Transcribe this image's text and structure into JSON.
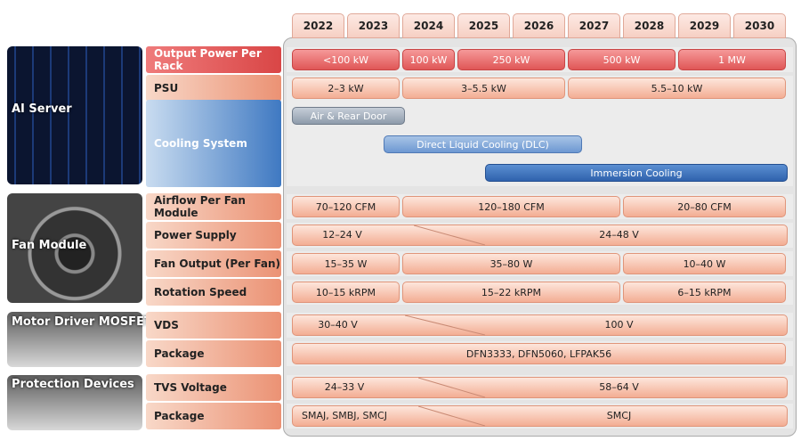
{
  "header": {
    "years": [
      "2022",
      "2023",
      "2024",
      "2025",
      "2026",
      "2027",
      "2028",
      "2029",
      "2030"
    ]
  },
  "groups": [
    {
      "title": "AI Server",
      "rows": [
        {
          "label": "Output Power Per Rack",
          "bars": [
            "<100 kW",
            "100 kW",
            "250 kW",
            "500 kW",
            "1 MW"
          ]
        },
        {
          "label": "PSU",
          "bars": [
            "2–3 kW",
            "3–5.5 kW",
            "5.5–10 kW"
          ]
        },
        {
          "label": "Cooling System",
          "bars": [
            "Air & Rear Door",
            "Direct Liquid Cooling (DLC)",
            "Immersion Cooling"
          ]
        }
      ]
    },
    {
      "title": "Fan Module",
      "rows": [
        {
          "label": "Airflow Per Fan Module",
          "bars": [
            "70–120 CFM",
            "120–180 CFM",
            "20–80 CFM"
          ]
        },
        {
          "label": "Power Supply",
          "bars": [
            "12–24 V",
            "24–48 V"
          ]
        },
        {
          "label": "Fan Output (Per Fan)",
          "bars": [
            "15–35 W",
            "35–80 W",
            "10–40 W"
          ]
        },
        {
          "label": "Rotation Speed",
          "bars": [
            "10–15 kRPM",
            "15–22 kRPM",
            "6–15 kRPM"
          ]
        }
      ]
    },
    {
      "title": "Motor Driver MOSFET",
      "rows": [
        {
          "label": "VDS",
          "bars": [
            "30–40 V",
            "100 V"
          ]
        },
        {
          "label": "Package",
          "bars": [
            "DFN3333, DFN5060, LFPAK56"
          ]
        }
      ]
    },
    {
      "title": "Protection Devices",
      "rows": [
        {
          "label": "TVS Voltage",
          "bars": [
            "24–33 V",
            "58–64 V"
          ]
        },
        {
          "label": "Package",
          "bars": [
            "SMAJ, SMBJ, SMCJ",
            "SMCJ"
          ]
        }
      ]
    }
  ]
}
